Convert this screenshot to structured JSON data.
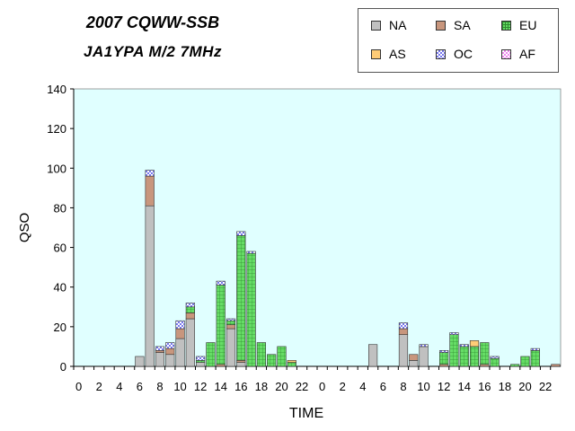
{
  "title_line1": "2007 CQWW-SSB",
  "title_line2": "JA1YPA  M/2  7MHz",
  "chart_data": {
    "type": "bar",
    "stacked": true,
    "ylabel": "QSO",
    "xlabel": "TIME",
    "ylim": [
      0,
      140
    ],
    "yticks": [
      0,
      20,
      40,
      60,
      80,
      100,
      120,
      140
    ],
    "grid": false,
    "legend_position": "top-right",
    "plot_background": "#e0ffff",
    "categories": [
      "0",
      "",
      "2",
      "",
      "4",
      "",
      "6",
      "",
      "8",
      "",
      "10",
      "",
      "12",
      "",
      "14",
      "",
      "16",
      "",
      "18",
      "",
      "20",
      "",
      "22",
      "",
      "0",
      "",
      "2",
      "",
      "4",
      "",
      "6",
      "",
      "8",
      "",
      "10",
      "",
      "12",
      "",
      "14",
      "",
      "16",
      "",
      "18",
      "",
      "20",
      "",
      "22",
      ""
    ],
    "series": [
      {
        "name": "NA",
        "color": "#c0c0c0",
        "pattern": "solid",
        "values": [
          0,
          0,
          0,
          0,
          0,
          0,
          5,
          81,
          7,
          6,
          14,
          24,
          2,
          0,
          0,
          19,
          2,
          0,
          0,
          0,
          0,
          0,
          0,
          0,
          0,
          0,
          0,
          0,
          0,
          11,
          0,
          0,
          16,
          3,
          10,
          0,
          0,
          0,
          0,
          0,
          0,
          0,
          0,
          0,
          0,
          0,
          0,
          0
        ]
      },
      {
        "name": "SA",
        "color": "#c8967d",
        "pattern": "solid",
        "values": [
          0,
          0,
          0,
          0,
          0,
          0,
          0,
          15,
          1,
          3,
          5,
          3,
          0,
          0,
          1,
          2,
          1,
          0,
          0,
          0,
          0,
          0,
          0,
          0,
          0,
          0,
          0,
          0,
          0,
          0,
          0,
          0,
          3,
          3,
          0,
          0,
          1,
          0,
          0,
          0,
          1,
          0,
          0,
          0,
          0,
          0,
          0,
          1
        ]
      },
      {
        "name": "EU",
        "color": "#66dd66",
        "pattern": "grid",
        "values": [
          0,
          0,
          0,
          0,
          0,
          0,
          0,
          0,
          0,
          0,
          0,
          3,
          1,
          12,
          40,
          2,
          63,
          57,
          12,
          6,
          10,
          2,
          0,
          0,
          0,
          0,
          0,
          0,
          0,
          0,
          0,
          0,
          0,
          0,
          0,
          0,
          6,
          16,
          10,
          10,
          11,
          4,
          0,
          1,
          5,
          8,
          0,
          0
        ]
      },
      {
        "name": "AS",
        "color": "#ffcc77",
        "pattern": "solid",
        "values": [
          0,
          0,
          0,
          0,
          0,
          0,
          0,
          0,
          0,
          0,
          0,
          0,
          0,
          0,
          0,
          0,
          0,
          0,
          0,
          0,
          0,
          1,
          0,
          0,
          0,
          0,
          0,
          0,
          0,
          0,
          0,
          0,
          0,
          0,
          0,
          0,
          0,
          0,
          0,
          3,
          0,
          0,
          0,
          0,
          0,
          0,
          0,
          0
        ]
      },
      {
        "name": "OC",
        "color": "#7777ee",
        "pattern": "checker",
        "values": [
          0,
          0,
          0,
          0,
          0,
          0,
          0,
          3,
          2,
          3,
          4,
          2,
          2,
          0,
          2,
          1,
          2,
          1,
          0,
          0,
          0,
          0,
          0,
          0,
          0,
          0,
          0,
          0,
          0,
          0,
          0,
          0,
          3,
          0,
          1,
          0,
          1,
          1,
          1,
          0,
          0,
          1,
          0,
          0,
          0,
          1,
          0,
          0
        ]
      },
      {
        "name": "AF",
        "color": "#ee88ee",
        "pattern": "checker",
        "values": [
          0,
          0,
          0,
          0,
          0,
          0,
          0,
          0,
          0,
          0,
          0,
          0,
          0,
          0,
          0,
          0,
          0,
          0,
          0,
          0,
          0,
          0,
          0,
          0,
          0,
          0,
          0,
          0,
          0,
          0,
          0,
          0,
          0,
          0,
          0,
          0,
          0,
          0,
          0,
          0,
          0,
          0,
          0,
          0,
          0,
          0,
          0,
          0
        ]
      }
    ]
  }
}
